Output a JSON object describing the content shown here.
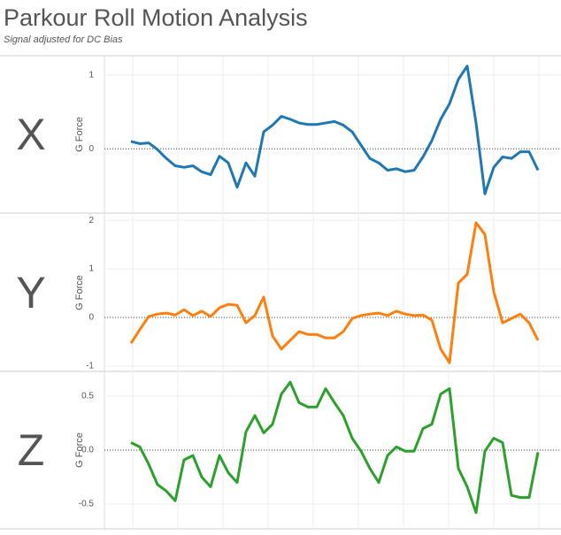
{
  "title": "Parkour Roll Motion Analysis",
  "subtitle": "Signal adjusted for DC Bias",
  "chart_data": [
    {
      "type": "line",
      "label": "X",
      "ylabel": "G Force",
      "color": "#1f77b4",
      "grid": true,
      "ylim": [
        -0.87,
        1.26
      ],
      "yticks": [
        0,
        1
      ],
      "values": [
        0.1,
        0.07,
        0.08,
        -0.01,
        -0.13,
        -0.23,
        -0.25,
        -0.23,
        -0.31,
        -0.35,
        -0.1,
        -0.19,
        -0.52,
        -0.19,
        -0.37,
        0.23,
        0.32,
        0.44,
        0.4,
        0.35,
        0.33,
        0.33,
        0.35,
        0.37,
        0.32,
        0.23,
        0.05,
        -0.13,
        -0.19,
        -0.29,
        -0.27,
        -0.31,
        -0.29,
        -0.11,
        0.11,
        0.4,
        0.61,
        0.94,
        1.12,
        0.35,
        -0.61,
        -0.25,
        -0.11,
        -0.13,
        -0.04,
        -0.04,
        -0.29
      ]
    },
    {
      "type": "line",
      "label": "Y",
      "ylabel": "G Force",
      "color": "#ff7f0e",
      "grid": true,
      "ylim": [
        -1.11,
        2.13
      ],
      "yticks": [
        -1,
        0,
        1,
        2
      ],
      "values": [
        -0.53,
        -0.25,
        0.02,
        0.07,
        0.09,
        0.05,
        0.16,
        0.04,
        0.13,
        0.02,
        0.2,
        0.27,
        0.25,
        -0.11,
        0.04,
        0.42,
        -0.38,
        -0.65,
        -0.47,
        -0.29,
        -0.35,
        -0.35,
        -0.42,
        -0.42,
        -0.29,
        -0.02,
        0.04,
        0.07,
        0.09,
        0.04,
        0.13,
        0.07,
        0.04,
        0.05,
        -0.05,
        -0.65,
        -0.93,
        0.71,
        0.89,
        1.95,
        1.71,
        0.53,
        -0.11,
        -0.02,
        0.07,
        -0.11,
        -0.47
      ]
    },
    {
      "type": "line",
      "label": "Z",
      "ylabel": "G Force",
      "color": "#2ca02c",
      "grid": true,
      "ylim": [
        -0.73,
        0.73
      ],
      "yticks": [
        -0.5,
        {
          "value": 0,
          "label": "0.0"
        },
        0.5
      ],
      "values": [
        0.07,
        0.03,
        -0.13,
        -0.32,
        -0.38,
        -0.47,
        -0.09,
        -0.05,
        -0.25,
        -0.34,
        -0.05,
        -0.21,
        -0.3,
        0.17,
        0.32,
        0.16,
        0.24,
        0.52,
        0.63,
        0.44,
        0.4,
        0.4,
        0.57,
        0.44,
        0.32,
        0.11,
        -0.01,
        -0.17,
        -0.3,
        -0.05,
        0.03,
        -0.01,
        -0.01,
        0.2,
        0.24,
        0.52,
        0.57,
        -0.17,
        -0.34,
        -0.58,
        -0.01,
        0.11,
        0.07,
        -0.42,
        -0.44,
        -0.44,
        -0.02
      ]
    }
  ]
}
